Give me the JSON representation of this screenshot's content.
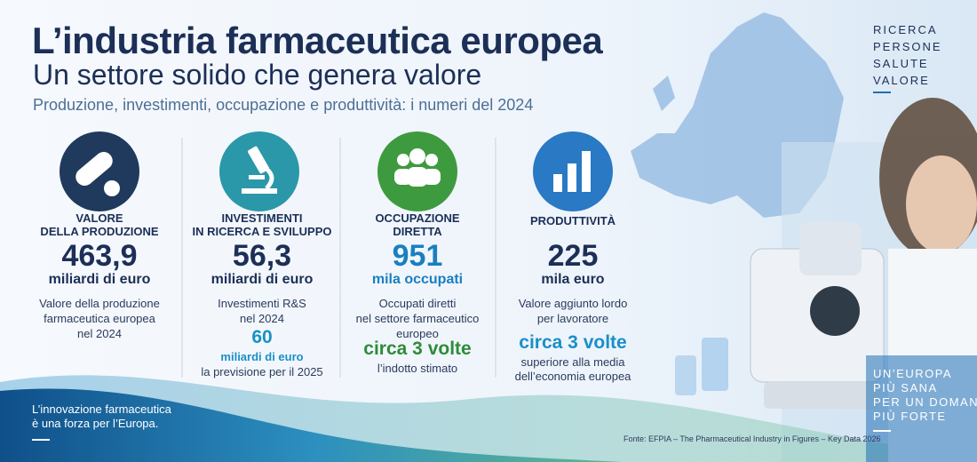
{
  "header": {
    "title": "L’industria farmaceutica europea",
    "subtitle": "Un settore solido che genera valore",
    "tagline": "Produzione, investimenti, occupazione e produttività: i numeri del 2024"
  },
  "side_words": [
    "RICERCA",
    "PERSONE",
    "SALUTE",
    "VALORE"
  ],
  "columns": [
    {
      "label": [
        "VALORE",
        "DELLA PRODUZIONE"
      ],
      "value": "463,9",
      "unit": "miliardi di euro",
      "description": [
        "Valore della produzione",
        "farmaceutica europea",
        "nel 2024"
      ]
    },
    {
      "label": [
        "INVESTIMENTI",
        "IN RICERCA E SVILUPPO"
      ],
      "value": "56,3",
      "unit": "miliardi di euro",
      "description": [
        "Investimenti R&S",
        "nel 2024"
      ],
      "highlight": "60",
      "highlight_unit": "miliardi di euro",
      "highlight_note": [
        "la previsione per il 2025"
      ]
    },
    {
      "label": [
        "OCCUPAZIONE",
        "DIRETTA"
      ],
      "value": "951",
      "unit": "mila occupati",
      "description": [
        "Occupati diretti",
        "nel settore farmaceutico",
        "europeo"
      ],
      "highlight": "circa 3 volte",
      "highlight_note": [
        "l’indotto stimato"
      ]
    },
    {
      "label": [
        "PRODUTTIVITÀ"
      ],
      "value": "225",
      "unit": "mila euro",
      "description": [
        "Valore aggiunto lordo",
        "per lavoratore"
      ],
      "highlight": "circa 3 volte",
      "highlight_note": [
        "superiore alla media",
        "dell’economia europea"
      ]
    }
  ],
  "footer": {
    "left_text": [
      "L’innovazione farmaceutica",
      "è una forza per l’Europa."
    ],
    "slogan": [
      "UN’EUROPA",
      "PIÙ SANA",
      "PER UN DOMANI",
      "PIÙ FORTE"
    ],
    "source": "Fonte: EFPIA – The Pharmaceutical Industry in Figures – Key Data 2026"
  }
}
